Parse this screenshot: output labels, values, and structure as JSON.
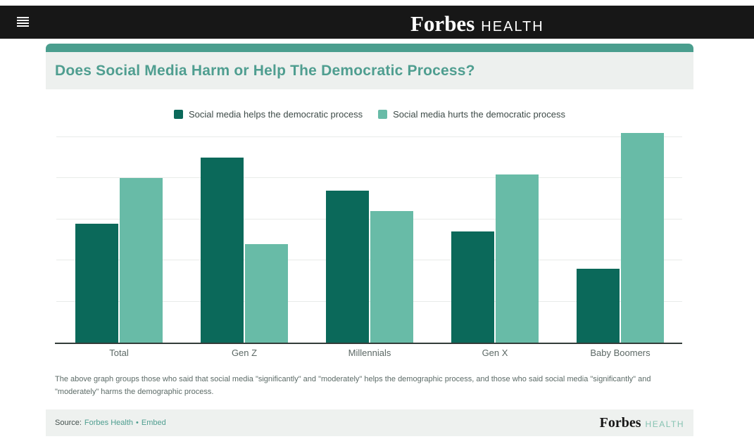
{
  "header": {
    "brand": {
      "forbes": "Forbes",
      "health": "HEALTH"
    }
  },
  "card": {
    "accent_color": "#4a9e8e",
    "title": "Does Social Media Harm or Help The Democratic Process?"
  },
  "chart_data": {
    "type": "bar",
    "title": "Does Social Media Harm or Help The Democratic Process?",
    "categories": [
      "Total",
      "Gen Z",
      "Millennials",
      "Gen X",
      "Baby Boomers"
    ],
    "series": [
      {
        "name": "Social media helps the democratic process",
        "color": "#0b695a",
        "values": [
          29,
          45,
          37,
          27,
          18
        ]
      },
      {
        "name": "Social media hurts the democratic process",
        "color": "#68bba7",
        "values": [
          40,
          24,
          32,
          41,
          51
        ]
      }
    ],
    "xlabel": "",
    "ylabel": "",
    "ylim": [
      0,
      52
    ],
    "y_gridlines": [
      10,
      20,
      30,
      40,
      50
    ],
    "y_axis_labels_visible": false,
    "grid": true,
    "legend_position": "top"
  },
  "footnote": "The above graph groups those who said that social media \"significantly\" and \"moderately\" helps the demographic process, and those who said social media \"significantly\" and \"moderately\" harms the demographic process.",
  "source_bar": {
    "prefix": "Source:",
    "source_link": "Forbes Health",
    "separator": "•",
    "embed_link": "Embed",
    "brand": {
      "forbes": "Forbes",
      "health": "HEALTH"
    }
  }
}
